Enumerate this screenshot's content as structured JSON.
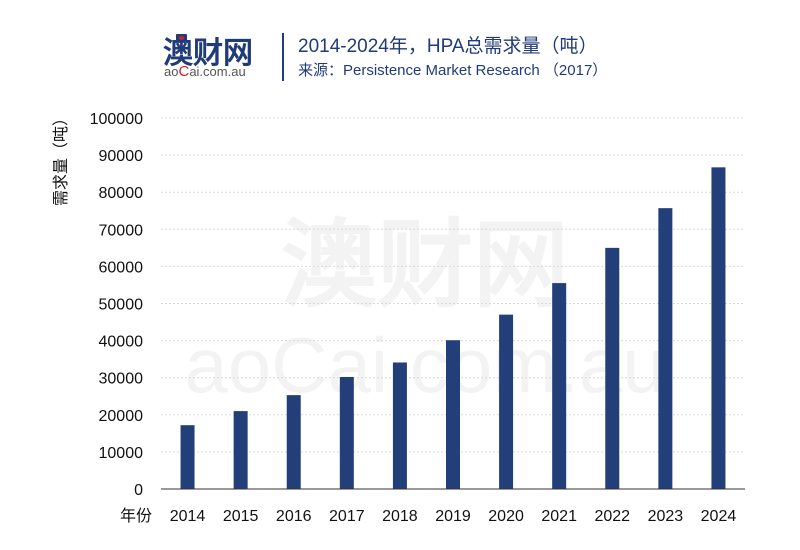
{
  "header": {
    "logo_cn": "澳财网",
    "logo_en_prefix": "a",
    "logo_en_o": "o",
    "logo_en_c": "C",
    "logo_en_rest": "ai.com.au",
    "title": "2014-2024年，HPA总需求量（吨）",
    "source": "来源：Persistence Market Research （2017）"
  },
  "watermark": {
    "cn": "澳财网",
    "en": "aoCai.com.au"
  },
  "colors": {
    "bar": "#233f7a",
    "text": "#1f3b7a",
    "grid": "#d9d9d9"
  },
  "chart_data": {
    "type": "bar",
    "title": "2014-2024年，HPA总需求量（吨）",
    "xlabel": "年份",
    "ylabel": "需求量（吨）",
    "ylim": [
      0,
      100000
    ],
    "yticks": [
      0,
      10000,
      20000,
      30000,
      40000,
      50000,
      60000,
      70000,
      80000,
      90000,
      100000
    ],
    "grid": true,
    "categories": [
      "2014",
      "2015",
      "2016",
      "2017",
      "2018",
      "2019",
      "2020",
      "2021",
      "2022",
      "2023",
      "2024"
    ],
    "values": [
      17200,
      21000,
      25300,
      30200,
      34100,
      40100,
      47000,
      55500,
      65000,
      75700,
      86700
    ]
  }
}
